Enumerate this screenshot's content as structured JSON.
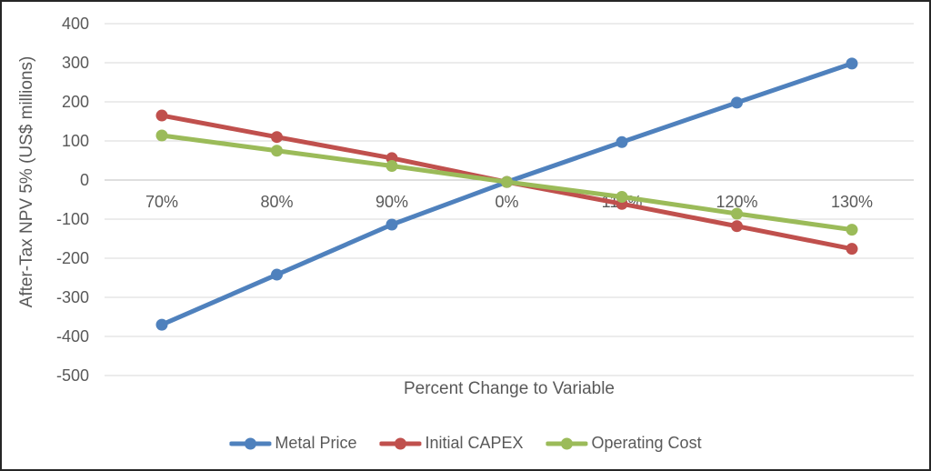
{
  "chart_data": {
    "type": "line",
    "title": "",
    "xlabel": "Percent Change to Variable",
    "ylabel": "After-Tax NPV 5% (US$ millions)",
    "categories": [
      "70%",
      "80%",
      "90%",
      "0%",
      "110%",
      "120%",
      "130%"
    ],
    "series": [
      {
        "name": "Metal Price",
        "color": "#4F81BD",
        "values": [
          -370,
          -242,
          -114,
          -5,
          97,
          198,
          298
        ]
      },
      {
        "name": "Initial CAPEX",
        "color": "#C0504D",
        "values": [
          165,
          110,
          56,
          -5,
          -61,
          -118,
          -176
        ]
      },
      {
        "name": "Operating Cost",
        "color": "#9BBB59",
        "values": [
          114,
          75,
          36,
          -5,
          -43,
          -86,
          -127
        ]
      }
    ],
    "ylim": [
      -500,
      400
    ],
    "ytick_step": 100,
    "grid": true,
    "legend_position": "bottom",
    "marker": "circle",
    "line_width": 5,
    "marker_radius": 6.5
  },
  "colors": {
    "text": "#595959",
    "gridline": "#D9D9D9",
    "zero_line": "#BFBFBF",
    "border": "#262626",
    "background": "#FFFFFF"
  }
}
